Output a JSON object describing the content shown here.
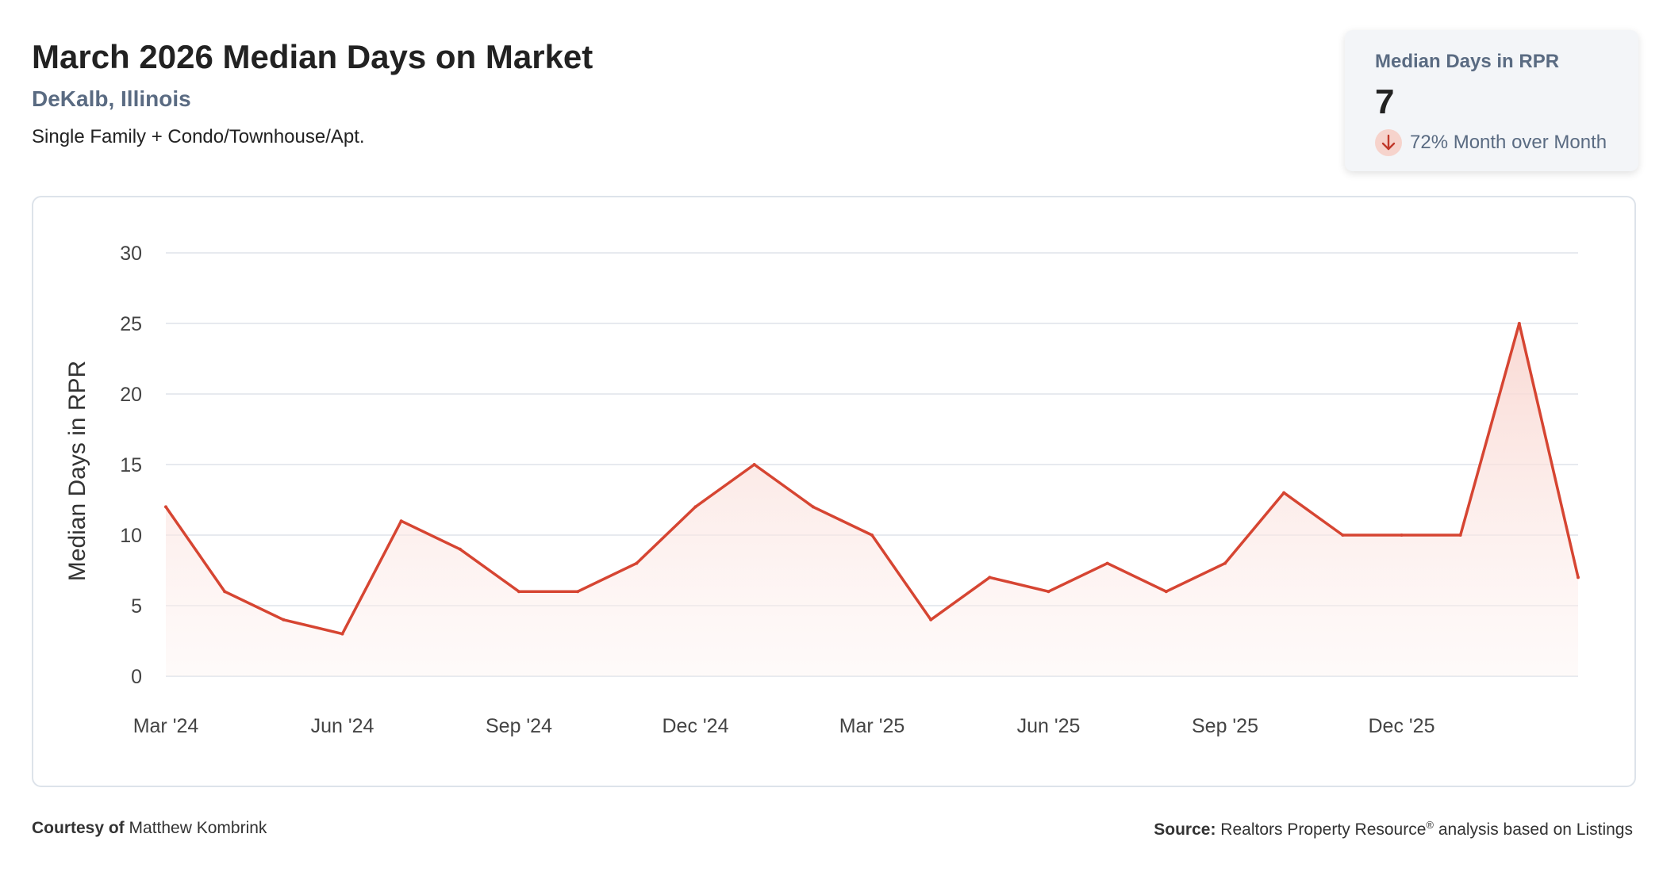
{
  "header": {
    "title": "March 2026 Median Days on Market",
    "location": "DeKalb, Illinois",
    "subtitle": "Single Family + Condo/Townhouse/Apt."
  },
  "kpi": {
    "label": "Median Days in RPR",
    "value": "7",
    "change": "72% Month over Month",
    "direction": "down",
    "icon": "arrow-down-icon"
  },
  "footer": {
    "courtesy_label": "Courtesy of",
    "courtesy_name": "Matthew Kombrink",
    "source_label": "Source:",
    "source_text_1": "Realtors Property Resource",
    "source_mark": "®",
    "source_text_2": " analysis based on Listings"
  },
  "colors": {
    "line": "#d64532",
    "area_top": "#f9d7d1",
    "grid": "#dfe4ea",
    "accent_text": "#5a6b82"
  },
  "chart_data": {
    "type": "area",
    "ylabel": "Median Days in RPR",
    "xlabel": "",
    "ylim": [
      0,
      30
    ],
    "yticks": [
      0,
      5,
      10,
      15,
      20,
      25,
      30
    ],
    "grid": true,
    "x_tick_labels": [
      "Mar '24",
      "Jun '24",
      "Sep '24",
      "Dec '24",
      "Mar '25",
      "Jun '25",
      "Sep '25",
      "Dec '25"
    ],
    "x": [
      "2024-03",
      "2024-04",
      "2024-05",
      "2024-06",
      "2024-07",
      "2024-08",
      "2024-09",
      "2024-10",
      "2024-11",
      "2024-12",
      "2025-01",
      "2025-02",
      "2025-03",
      "2025-04",
      "2025-05",
      "2025-06",
      "2025-07",
      "2025-08",
      "2025-09",
      "2025-10",
      "2025-11",
      "2025-12",
      "2026-01",
      "2026-02",
      "2026-03"
    ],
    "series": [
      {
        "values": [
          12,
          6,
          4,
          3,
          11,
          9,
          6,
          6,
          8,
          12,
          15,
          12,
          10,
          4,
          7,
          6,
          8,
          6,
          8,
          13,
          10,
          10,
          10,
          25,
          7
        ]
      }
    ]
  }
}
